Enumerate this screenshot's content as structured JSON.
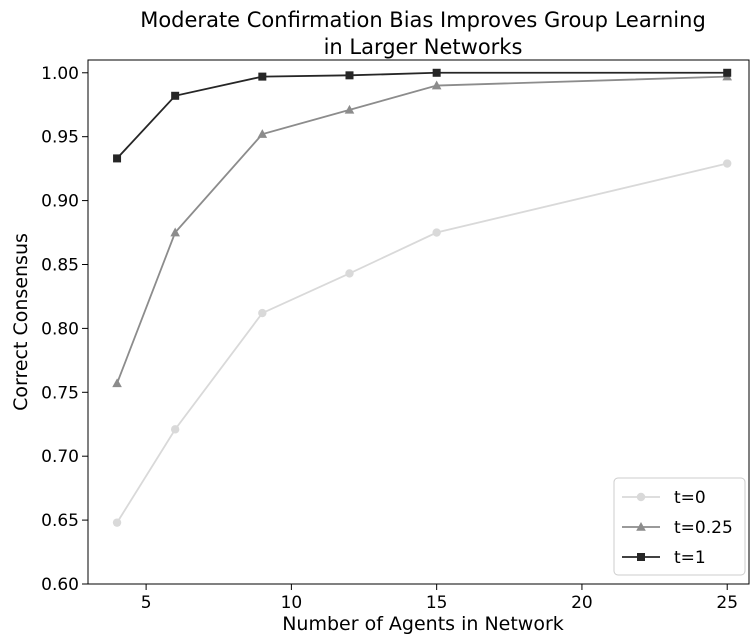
{
  "chart_data": {
    "type": "line",
    "title_lines": [
      "Moderate Confirmation Bias Improves Group Learning",
      "in Larger Networks"
    ],
    "xlabel": "Number of Agents in Network",
    "ylabel": "Correct Consensus",
    "xlim": [
      3.0,
      25.75
    ],
    "ylim": [
      0.6,
      1.01
    ],
    "xticks": [
      5,
      10,
      15,
      20,
      25
    ],
    "yticks": [
      "0.60",
      "0.65",
      "0.70",
      "0.75",
      "0.80",
      "0.85",
      "0.90",
      "0.95",
      "1.00"
    ],
    "grid": false,
    "legend_position": "lower-right",
    "x": [
      4,
      6,
      9,
      12,
      15,
      25
    ],
    "series": [
      {
        "name": "t=0",
        "marker": "circle",
        "color": "#d9d9d9",
        "values": [
          0.648,
          0.721,
          0.812,
          0.843,
          0.875,
          0.929
        ]
      },
      {
        "name": "t=0.25",
        "marker": "triangle",
        "color": "#8c8c8c",
        "values": [
          0.757,
          0.875,
          0.952,
          0.971,
          0.99,
          0.997
        ]
      },
      {
        "name": "t=1",
        "marker": "square",
        "color": "#262626",
        "values": [
          0.933,
          0.982,
          0.997,
          0.998,
          1.0,
          1.0
        ]
      }
    ]
  }
}
